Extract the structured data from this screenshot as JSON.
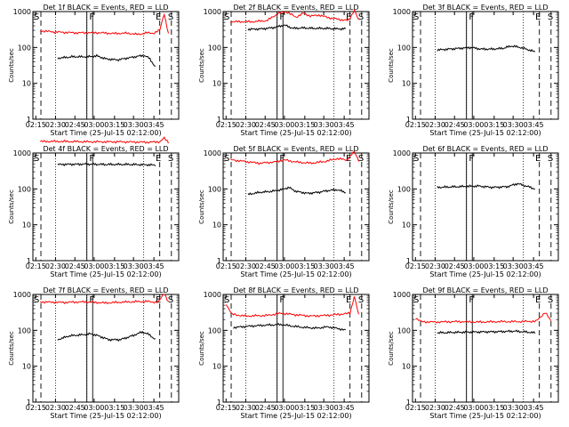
{
  "chart_data": [
    {
      "type": "line",
      "title": "Det 1f BLACK = Events, RED = LLD",
      "xlabel": "Start Time (25-Jul-15 02:12:00)",
      "ylabel": "Counts/sec",
      "yscale": "log",
      "ylim": [
        1,
        1000
      ],
      "x_ticks": [
        "02:15",
        "02:30",
        "02:45",
        "03:00",
        "03:15",
        "03:30",
        "03:45"
      ],
      "y_ticks": [
        "1",
        "10",
        "100",
        "1000"
      ],
      "markers": [
        "S",
        "F",
        "E",
        "S"
      ],
      "series": [
        {
          "color": "#ff0000",
          "points": [
            [
              0.05,
              290
            ],
            [
              0.15,
              270
            ],
            [
              0.3,
              255
            ],
            [
              0.45,
              258
            ],
            [
              0.55,
              245
            ],
            [
              0.65,
              250
            ],
            [
              0.72,
              230
            ],
            [
              0.78,
              255
            ],
            [
              0.83,
              250
            ],
            [
              0.87,
              300
            ],
            [
              0.9,
              900
            ],
            [
              0.93,
              230
            ]
          ]
        },
        {
          "color": "#000000",
          "points": [
            [
              0.17,
              50
            ],
            [
              0.27,
              55
            ],
            [
              0.38,
              55
            ],
            [
              0.44,
              58
            ],
            [
              0.5,
              48
            ],
            [
              0.58,
              45
            ],
            [
              0.64,
              50
            ],
            [
              0.7,
              55
            ],
            [
              0.76,
              60
            ],
            [
              0.8,
              50
            ],
            [
              0.84,
              28
            ]
          ]
        }
      ]
    },
    {
      "type": "line",
      "title": "Det 2f BLACK = Events, RED = LLD",
      "xlabel": "Start Time (25-Jul-15 02:12:00)",
      "ylabel": "Counts/sec",
      "yscale": "log",
      "ylim": [
        1,
        1000
      ],
      "x_ticks": [
        "02:15",
        "02:30",
        "02:45",
        "03:00",
        "03:15",
        "03:30",
        "03:45"
      ],
      "y_ticks": [
        "1",
        "10",
        "100",
        "1000"
      ],
      "markers": [
        "S",
        "F",
        "E",
        "S"
      ],
      "series": [
        {
          "color": "#ff0000",
          "points": [
            [
              0.05,
              520
            ],
            [
              0.2,
              520
            ],
            [
              0.3,
              560
            ],
            [
              0.38,
              900
            ],
            [
              0.43,
              1000
            ],
            [
              0.5,
              700
            ],
            [
              0.55,
              900
            ],
            [
              0.6,
              750
            ],
            [
              0.66,
              800
            ],
            [
              0.72,
              680
            ],
            [
              0.8,
              600
            ],
            [
              0.86,
              560
            ],
            [
              0.9,
              1100
            ],
            [
              0.93,
              560
            ]
          ]
        },
        {
          "color": "#000000",
          "points": [
            [
              0.17,
              320
            ],
            [
              0.27,
              330
            ],
            [
              0.35,
              360
            ],
            [
              0.42,
              420
            ],
            [
              0.48,
              340
            ],
            [
              0.55,
              350
            ],
            [
              0.62,
              340
            ],
            [
              0.7,
              340
            ],
            [
              0.78,
              330
            ],
            [
              0.84,
              330
            ]
          ]
        }
      ]
    },
    {
      "type": "line",
      "title": "Det 3f BLACK = Events, RED = LLD",
      "xlabel": "Start Time (25-Jul-15 02:12:00)",
      "ylabel": "Counts/sec",
      "yscale": "log",
      "ylim": [
        1,
        1000
      ],
      "x_ticks": [
        "02:15",
        "02:30",
        "02:45",
        "03:00",
        "03:15",
        "03:30",
        "03:45"
      ],
      "y_ticks": [
        "1",
        "10",
        "100",
        "1000"
      ],
      "markers": [
        "S",
        "F",
        "E",
        "S"
      ],
      "series": [
        {
          "color": "#000000",
          "points": [
            [
              0.17,
              85
            ],
            [
              0.25,
              90
            ],
            [
              0.33,
              95
            ],
            [
              0.4,
              100
            ],
            [
              0.47,
              90
            ],
            [
              0.55,
              90
            ],
            [
              0.62,
              95
            ],
            [
              0.68,
              110
            ],
            [
              0.74,
              100
            ],
            [
              0.8,
              85
            ],
            [
              0.84,
              75
            ]
          ]
        }
      ]
    },
    {
      "type": "line",
      "title": "Det 4f BLACK = Events, RED = LLD",
      "xlabel": "Start Time (25-Jul-15 02:12:00)",
      "ylabel": "Counts/sec",
      "yscale": "log",
      "ylim": [
        1,
        1000
      ],
      "x_ticks": [
        "02:15",
        "02:30",
        "02:45",
        "03:00",
        "03:15",
        "03:30",
        "03:45"
      ],
      "y_ticks": [
        "1",
        "10",
        "100",
        "1000"
      ],
      "markers": [
        "S",
        "F",
        "E",
        "S"
      ],
      "series": [
        {
          "color": "#ff0000",
          "points": [
            [
              0.05,
              2100
            ],
            [
              0.2,
              2100
            ],
            [
              0.4,
              2050
            ],
            [
              0.6,
              2050
            ],
            [
              0.8,
              2000
            ],
            [
              0.87,
              2050
            ],
            [
              0.9,
              2600
            ],
            [
              0.93,
              2000
            ]
          ]
        },
        {
          "color": "#000000",
          "points": [
            [
              0.17,
              480
            ],
            [
              0.35,
              490
            ],
            [
              0.5,
              480
            ],
            [
              0.65,
              480
            ],
            [
              0.78,
              470
            ],
            [
              0.84,
              460
            ]
          ]
        }
      ]
    },
    {
      "type": "line",
      "title": "Det 5f BLACK = Events, RED = LLD",
      "xlabel": "Start Time (25-Jul-15 02:12:00)",
      "ylabel": "Counts/sec",
      "yscale": "log",
      "ylim": [
        1,
        1000
      ],
      "x_ticks": [
        "02:15",
        "02:30",
        "02:45",
        "03:00",
        "03:15",
        "03:30",
        "03:45"
      ],
      "y_ticks": [
        "1",
        "10",
        "100",
        "1000"
      ],
      "markers": [
        "S",
        "F",
        "E",
        "S"
      ],
      "series": [
        {
          "color": "#ff0000",
          "points": [
            [
              0.05,
              650
            ],
            [
              0.15,
              580
            ],
            [
              0.25,
              520
            ],
            [
              0.35,
              560
            ],
            [
              0.42,
              640
            ],
            [
              0.5,
              560
            ],
            [
              0.6,
              520
            ],
            [
              0.7,
              580
            ],
            [
              0.78,
              700
            ],
            [
              0.85,
              640
            ],
            [
              0.9,
              1100
            ],
            [
              0.93,
              620
            ]
          ]
        },
        {
          "color": "#000000",
          "points": [
            [
              0.17,
              70
            ],
            [
              0.25,
              80
            ],
            [
              0.33,
              85
            ],
            [
              0.4,
              95
            ],
            [
              0.45,
              110
            ],
            [
              0.5,
              85
            ],
            [
              0.58,
              75
            ],
            [
              0.65,
              80
            ],
            [
              0.72,
              90
            ],
            [
              0.78,
              95
            ],
            [
              0.84,
              80
            ]
          ]
        }
      ]
    },
    {
      "type": "line",
      "title": "Det 6f BLACK = Events, RED = LLD",
      "xlabel": "Start Time (25-Jul-15 02:12:00)",
      "ylabel": "Counts/sec",
      "yscale": "log",
      "ylim": [
        1,
        1000
      ],
      "x_ticks": [
        "02:15",
        "02:30",
        "02:45",
        "03:00",
        "03:15",
        "03:30",
        "03:45"
      ],
      "y_ticks": [
        "1",
        "10",
        "100",
        "1000"
      ],
      "markers": [
        "S",
        "F",
        "E",
        "S"
      ],
      "series": [
        {
          "color": "#000000",
          "points": [
            [
              0.17,
              110
            ],
            [
              0.3,
              115
            ],
            [
              0.45,
              120
            ],
            [
              0.55,
              110
            ],
            [
              0.65,
              115
            ],
            [
              0.72,
              140
            ],
            [
              0.78,
              120
            ],
            [
              0.84,
              100
            ]
          ]
        }
      ]
    },
    {
      "type": "line",
      "title": "Det 7f BLACK = Events, RED = LLD",
      "xlabel": "Start Time (25-Jul-15 02:12:00)",
      "ylabel": "Counts/sec",
      "yscale": "log",
      "ylim": [
        1,
        1000
      ],
      "x_ticks": [
        "02:15",
        "02:30",
        "02:45",
        "03:00",
        "03:15",
        "03:30",
        "03:45"
      ],
      "y_ticks": [
        "1",
        "10",
        "100",
        "1000"
      ],
      "markers": [
        "S",
        "F",
        "E",
        "S"
      ],
      "series": [
        {
          "color": "#ff0000",
          "points": [
            [
              0.05,
              620
            ],
            [
              0.2,
              600
            ],
            [
              0.35,
              620
            ],
            [
              0.5,
              580
            ],
            [
              0.65,
              620
            ],
            [
              0.78,
              640
            ],
            [
              0.86,
              600
            ],
            [
              0.9,
              1100
            ],
            [
              0.93,
              600
            ]
          ]
        },
        {
          "color": "#000000",
          "points": [
            [
              0.17,
              55
            ],
            [
              0.25,
              70
            ],
            [
              0.33,
              75
            ],
            [
              0.4,
              80
            ],
            [
              0.45,
              70
            ],
            [
              0.52,
              55
            ],
            [
              0.6,
              55
            ],
            [
              0.68,
              70
            ],
            [
              0.75,
              90
            ],
            [
              0.8,
              75
            ],
            [
              0.84,
              55
            ]
          ]
        }
      ]
    },
    {
      "type": "line",
      "title": "Det 8f BLACK = Events, RED = LLD",
      "xlabel": "Start Time (25-Jul-15 02:12:00)",
      "ylabel": "Counts/sec",
      "yscale": "log",
      "ylim": [
        1,
        1000
      ],
      "x_ticks": [
        "02:15",
        "02:30",
        "02:45",
        "03:00",
        "03:15",
        "03:30",
        "03:45"
      ],
      "y_ticks": [
        "1",
        "10",
        "100",
        "1000"
      ],
      "markers": [
        "S",
        "F",
        "E",
        "S"
      ],
      "series": [
        {
          "color": "#ff0000",
          "points": [
            [
              0.02,
              550
            ],
            [
              0.06,
              280
            ],
            [
              0.15,
              250
            ],
            [
              0.3,
              260
            ],
            [
              0.4,
              300
            ],
            [
              0.5,
              270
            ],
            [
              0.6,
              250
            ],
            [
              0.7,
              260
            ],
            [
              0.8,
              280
            ],
            [
              0.87,
              300
            ],
            [
              0.9,
              900
            ],
            [
              0.93,
              260
            ]
          ]
        },
        {
          "color": "#000000",
          "points": [
            [
              0.07,
              120
            ],
            [
              0.17,
              130
            ],
            [
              0.3,
              140
            ],
            [
              0.4,
              145
            ],
            [
              0.48,
              130
            ],
            [
              0.56,
              120
            ],
            [
              0.64,
              115
            ],
            [
              0.72,
              125
            ],
            [
              0.8,
              110
            ],
            [
              0.84,
              100
            ]
          ]
        }
      ]
    },
    {
      "type": "line",
      "title": "Det 9f BLACK = Events, RED = LLD",
      "xlabel": "Start Time (25-Jul-15 02:12:00)",
      "ylabel": "Counts/sec",
      "yscale": "log",
      "ylim": [
        1,
        1000
      ],
      "x_ticks": [
        "02:15",
        "02:30",
        "02:45",
        "03:00",
        "03:15",
        "03:30",
        "03:45"
      ],
      "y_ticks": [
        "1",
        "10",
        "100",
        "1000"
      ],
      "markers": [
        "S",
        "F",
        "E",
        "S"
      ],
      "series": [
        {
          "color": "#ff0000",
          "points": [
            [
              0.02,
              220
            ],
            [
              0.06,
              175
            ],
            [
              0.15,
              170
            ],
            [
              0.3,
              175
            ],
            [
              0.45,
              170
            ],
            [
              0.6,
              175
            ],
            [
              0.75,
              175
            ],
            [
              0.85,
              180
            ],
            [
              0.91,
              320
            ],
            [
              0.95,
              180
            ]
          ]
        },
        {
          "color": "#000000",
          "points": [
            [
              0.17,
              85
            ],
            [
              0.3,
              88
            ],
            [
              0.45,
              90
            ],
            [
              0.6,
              92
            ],
            [
              0.7,
              95
            ],
            [
              0.78,
              90
            ],
            [
              0.84,
              85
            ]
          ]
        }
      ]
    }
  ]
}
